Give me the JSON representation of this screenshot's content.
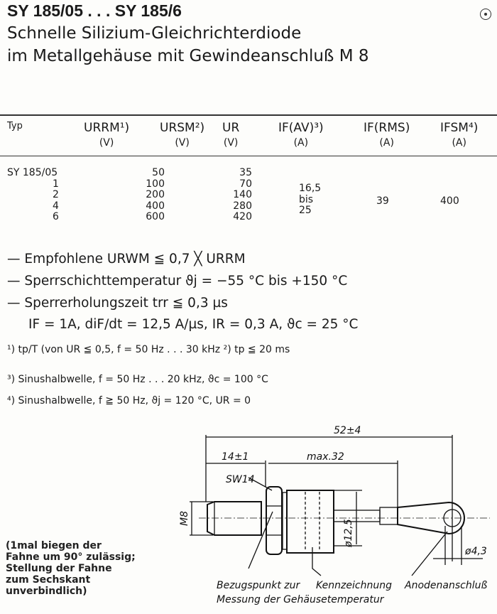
{
  "header": {
    "title": "SY 185/05 . . . SY 185/6",
    "subtitle1": "Schnelle Silizium-Gleichrichterdiode",
    "subtitle2": "im Metallgehäuse mit Gewindeanschluß M 8"
  },
  "table": {
    "headers": [
      {
        "sym": "Typ",
        "unit": ""
      },
      {
        "sym": "URRM¹)",
        "unit": "(V)"
      },
      {
        "sym": "URSM²)",
        "unit": "(V)"
      },
      {
        "sym": "UR",
        "unit": "(V)"
      },
      {
        "sym": "IF(AV)³)",
        "unit": "(A)"
      },
      {
        "sym": "IF(RMS)",
        "unit": "(A)"
      },
      {
        "sym": "IFSM⁴)",
        "unit": "(A)"
      }
    ],
    "types": [
      "SY  185/05",
      "1",
      "2",
      "4",
      "6"
    ],
    "urrm": [
      "50",
      "100",
      "200",
      "400",
      "600"
    ],
    "ur": [
      "35",
      "70",
      "140",
      "280",
      "420"
    ],
    "ifav": [
      "16,5",
      "bis",
      "25"
    ],
    "ifrms": "39",
    "ifsm": "400"
  },
  "specs": [
    "— Empfohlene URWM ≦ 0,7 ╳ URRM",
    "— Sperrschichttemperatur      ϑj = −55 °C bis +150 °C",
    "— Sperrerholungszeit trr ≦ 0,3 µs",
    "IF = 1A, diF/dt = 12,5 A/µs, IR = 0,3 A, ϑc =  25 °C"
  ],
  "footnotes": [
    "¹) tp/T (von UR ≦ 0,5, f = 50 Hz . . . 30 kHz  ²) tp ≦ 20 ms",
    "³)  Sinushalbwelle, f = 50 Hz . . . 20 kHz,  ϑc = 100 °C",
    "⁴)  Sinushalbwelle, f ≧ 50 Hz,  ϑj  = 120 °C,  UR = 0"
  ],
  "drawing": {
    "dim_total": "52±4",
    "dim_thread": "14±1",
    "dim_body": "max.32",
    "wrench": "SW14",
    "thread": "M8",
    "diameter_body": "ø12,5",
    "diameter_eye": "ø4,3",
    "label_ref1": "Bezugspunkt zur",
    "label_ref2": "Messung der Gehäusetemperatur",
    "label_marking": "Kennzeichnung",
    "label_anode": "Anodenanschluß"
  },
  "note": "(1mal biegen der\nFahne um 90° zulässig;\nStellung der Fahne\nzum Sechskant\nunverbindlich)"
}
